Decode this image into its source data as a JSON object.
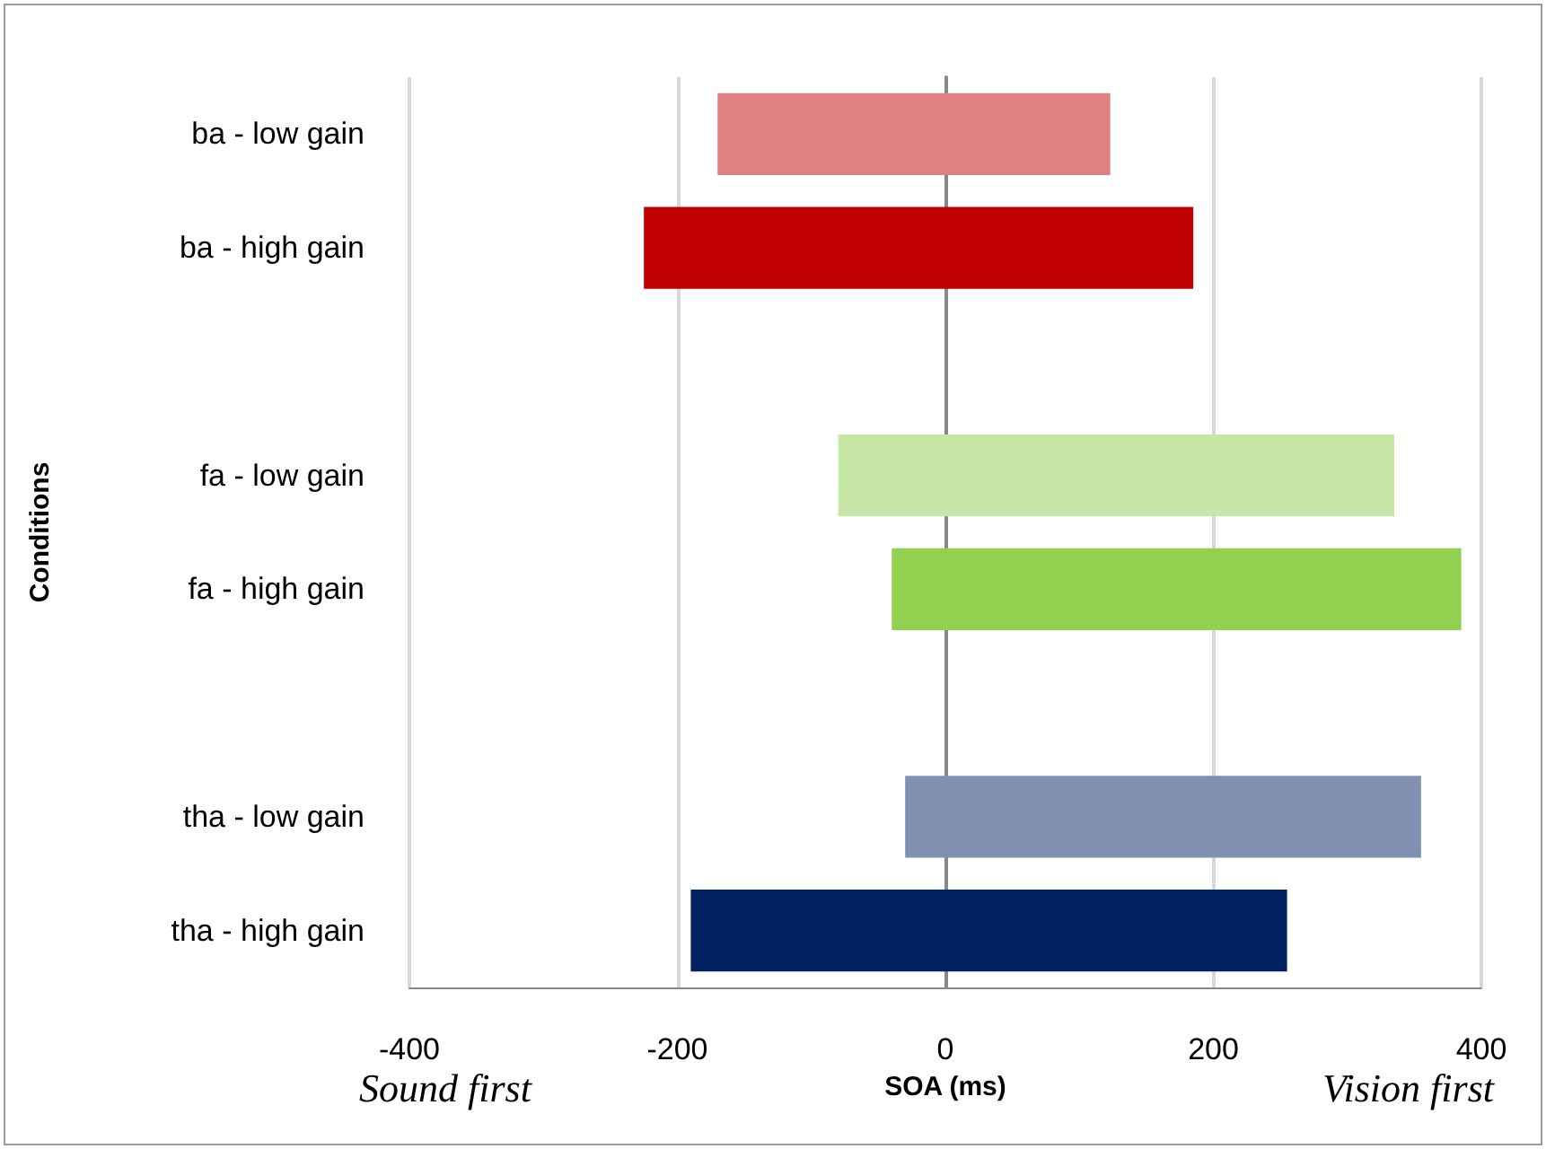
{
  "chart_data": {
    "type": "bar",
    "orientation": "horizontal",
    "categories": [
      "ba - low gain",
      "ba - high gain",
      null,
      "fa - low gain",
      "fa - high gain",
      null,
      "tha - low gain",
      "tha - high gain"
    ],
    "base": [
      -170,
      -225,
      null,
      -80,
      -40,
      null,
      -30,
      -190
    ],
    "values": [
      293,
      410,
      null,
      415,
      425,
      null,
      385,
      445
    ],
    "colors": [
      "#e08080",
      "#c00000",
      null,
      "#c8e7a7",
      "#92d050",
      null,
      "#8090b0",
      "#002060"
    ],
    "xlim": [
      -400,
      400
    ],
    "xticks": [
      -400,
      -200,
      0,
      200,
      400
    ],
    "xlabel": "SOA (ms)",
    "ylabel": "Conditions",
    "annotations": [
      "Sound first",
      "Vision first"
    ],
    "grid": "x"
  }
}
